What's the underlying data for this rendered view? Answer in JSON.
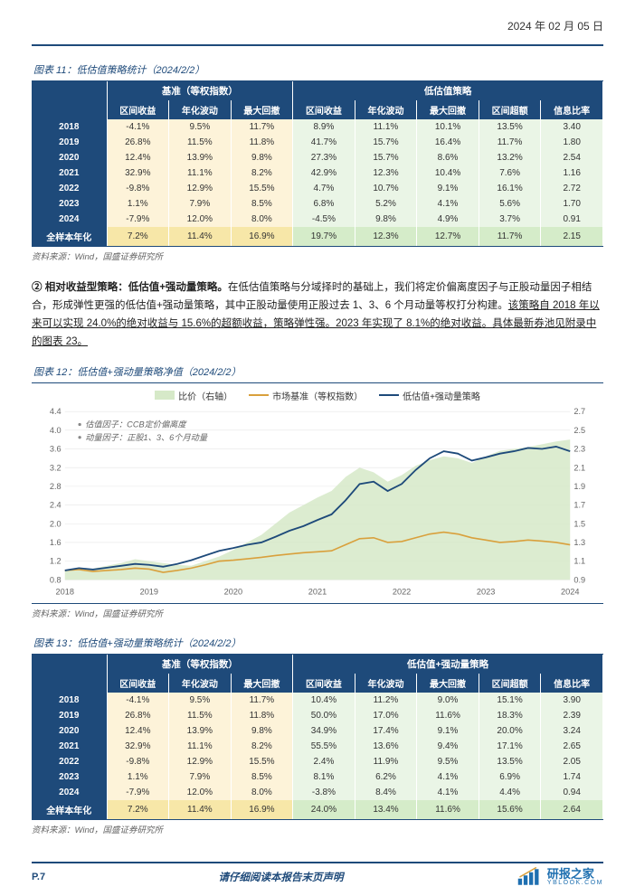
{
  "header": {
    "date": "2024 年 02 月 05 日"
  },
  "figure11": {
    "title": "图表 11：低估值策略统计（2024/2/2）",
    "group_headers": [
      "",
      "基准（等权指数）",
      "低估值策略"
    ],
    "columns": [
      "",
      "区间收益",
      "年化波动",
      "最大回撤",
      "区间收益",
      "年化波动",
      "最大回撤",
      "区间超额",
      "信息比率"
    ],
    "rows": [
      [
        "2018",
        "-4.1%",
        "9.5%",
        "11.7%",
        "8.9%",
        "11.1%",
        "10.1%",
        "13.5%",
        "3.40"
      ],
      [
        "2019",
        "26.8%",
        "11.5%",
        "11.8%",
        "41.7%",
        "15.7%",
        "16.4%",
        "11.7%",
        "1.80"
      ],
      [
        "2020",
        "12.4%",
        "13.9%",
        "9.8%",
        "27.3%",
        "15.7%",
        "8.6%",
        "13.2%",
        "2.54"
      ],
      [
        "2021",
        "32.9%",
        "11.1%",
        "8.2%",
        "42.9%",
        "12.3%",
        "10.4%",
        "7.6%",
        "1.16"
      ],
      [
        "2022",
        "-9.8%",
        "12.9%",
        "15.5%",
        "4.7%",
        "10.7%",
        "9.1%",
        "16.1%",
        "2.72"
      ],
      [
        "2023",
        "1.1%",
        "7.9%",
        "8.5%",
        "6.8%",
        "5.2%",
        "4.1%",
        "5.6%",
        "1.70"
      ],
      [
        "2024",
        "-7.9%",
        "12.0%",
        "8.0%",
        "-4.5%",
        "9.8%",
        "4.9%",
        "3.7%",
        "0.91"
      ]
    ],
    "total": [
      "全样本年化",
      "7.2%",
      "11.4%",
      "16.9%",
      "19.7%",
      "12.3%",
      "12.7%",
      "11.7%",
      "2.15"
    ],
    "source": "资料来源：Wind，国盛证券研究所"
  },
  "body_para": {
    "bullet": "②",
    "lead_bold": " 相对收益型策略：低估值+强动量策略。",
    "text1": "在低估值策略与分域择时的基础上，我们将定价偏离度因子与正股动量因子相结合，形成弹性更强的低估值+强动量策略，其中正股动量使用正股过去 1、3、6 个月动量等权打分构建。",
    "underline": "该策略自 2018 年以来可以实现 24.0%的绝对收益与 15.6%的超额收益，策略弹性强。2023 年实现了 8.1%的绝对收益。具体最新券池见附录中的图表 23。"
  },
  "figure12": {
    "title": "图表 12：低估值+强动量策略净值（2024/2/2）",
    "legend": {
      "area": {
        "label": "比价（右轴）",
        "color": "#d6e9c8"
      },
      "bench": {
        "label": "市场基准（等权指数）",
        "color": "#d9a03c"
      },
      "strat": {
        "label": "低估值+强动量策略",
        "color": "#1e4a7a"
      }
    },
    "notes": [
      "估值因子：CCB定价偏离度",
      "动量因子：正股1、3、6个月动量"
    ],
    "y_left": {
      "min": 0.8,
      "max": 4.4,
      "ticks": [
        0.8,
        1.2,
        1.6,
        2.0,
        2.4,
        2.8,
        3.2,
        3.6,
        4.0,
        4.4
      ]
    },
    "y_right": {
      "min": 0.9,
      "max": 2.7,
      "ticks": [
        0.9,
        1.1,
        1.3,
        1.5,
        1.7,
        1.9,
        2.1,
        2.3,
        2.5,
        2.7
      ]
    },
    "x_labels": [
      "2018",
      "2019",
      "2020",
      "2021",
      "2022",
      "2023",
      "2024"
    ],
    "colors": {
      "grid": "#e6e6e6",
      "axis_text": "#666666",
      "area_fill": "#d6e9c8",
      "bench_line": "#d9a03c",
      "strat_line": "#1e4a7a",
      "background": "#ffffff"
    },
    "series": {
      "area_right": [
        1.0,
        1.0,
        1.02,
        1.05,
        1.08,
        1.12,
        1.1,
        1.08,
        1.06,
        1.05,
        1.1,
        1.15,
        1.22,
        1.3,
        1.38,
        1.5,
        1.62,
        1.7,
        1.78,
        1.85,
        2.0,
        2.1,
        2.05,
        1.95,
        2.02,
        2.12,
        2.18,
        2.22,
        2.2,
        2.15,
        2.22,
        2.28,
        2.3,
        2.32,
        2.35,
        2.38,
        2.4
      ],
      "bench_left": [
        1.0,
        1.02,
        0.98,
        1.0,
        1.02,
        1.05,
        1.03,
        0.96,
        1.0,
        1.05,
        1.12,
        1.2,
        1.22,
        1.25,
        1.28,
        1.32,
        1.35,
        1.38,
        1.4,
        1.42,
        1.55,
        1.68,
        1.7,
        1.6,
        1.62,
        1.7,
        1.78,
        1.82,
        1.78,
        1.7,
        1.65,
        1.6,
        1.62,
        1.65,
        1.63,
        1.6,
        1.55
      ],
      "strat_left": [
        1.0,
        1.05,
        1.02,
        1.06,
        1.1,
        1.14,
        1.12,
        1.08,
        1.14,
        1.22,
        1.32,
        1.42,
        1.48,
        1.55,
        1.6,
        1.72,
        1.85,
        1.95,
        2.08,
        2.2,
        2.5,
        2.85,
        2.9,
        2.7,
        2.85,
        3.15,
        3.4,
        3.55,
        3.5,
        3.35,
        3.42,
        3.5,
        3.55,
        3.62,
        3.6,
        3.65,
        3.55
      ]
    },
    "source": "资料来源：Wind，国盛证券研究所"
  },
  "figure13": {
    "title": "图表 13：低估值+强动量策略统计（2024/2/2）",
    "group_headers": [
      "",
      "基准（等权指数）",
      "低估值+强动量策略"
    ],
    "columns": [
      "",
      "区间收益",
      "年化波动",
      "最大回撤",
      "区间收益",
      "年化波动",
      "最大回撤",
      "区间超额",
      "信息比率"
    ],
    "rows": [
      [
        "2018",
        "-4.1%",
        "9.5%",
        "11.7%",
        "10.4%",
        "11.2%",
        "9.0%",
        "15.1%",
        "3.90"
      ],
      [
        "2019",
        "26.8%",
        "11.5%",
        "11.8%",
        "50.0%",
        "17.0%",
        "11.6%",
        "18.3%",
        "2.39"
      ],
      [
        "2020",
        "12.4%",
        "13.9%",
        "9.8%",
        "34.9%",
        "17.4%",
        "9.1%",
        "20.0%",
        "3.24"
      ],
      [
        "2021",
        "32.9%",
        "11.1%",
        "8.2%",
        "55.5%",
        "13.6%",
        "9.4%",
        "17.1%",
        "2.65"
      ],
      [
        "2022",
        "-9.8%",
        "12.9%",
        "15.5%",
        "2.4%",
        "11.9%",
        "9.5%",
        "13.5%",
        "2.05"
      ],
      [
        "2023",
        "1.1%",
        "7.9%",
        "8.5%",
        "8.1%",
        "6.2%",
        "4.1%",
        "6.9%",
        "1.74"
      ],
      [
        "2024",
        "-7.9%",
        "12.0%",
        "8.0%",
        "-3.8%",
        "8.4%",
        "4.1%",
        "4.4%",
        "0.94"
      ]
    ],
    "total": [
      "全样本年化",
      "7.2%",
      "11.4%",
      "16.9%",
      "24.0%",
      "13.4%",
      "11.6%",
      "15.6%",
      "2.64"
    ],
    "source": "资料来源：Wind，国盛证券研究所"
  },
  "footer": {
    "page": "P.7",
    "disclaimer": "请仔细阅读本报告末页声明",
    "logo_cn": "研报之家",
    "logo_en": "YBLOOK.COM"
  }
}
